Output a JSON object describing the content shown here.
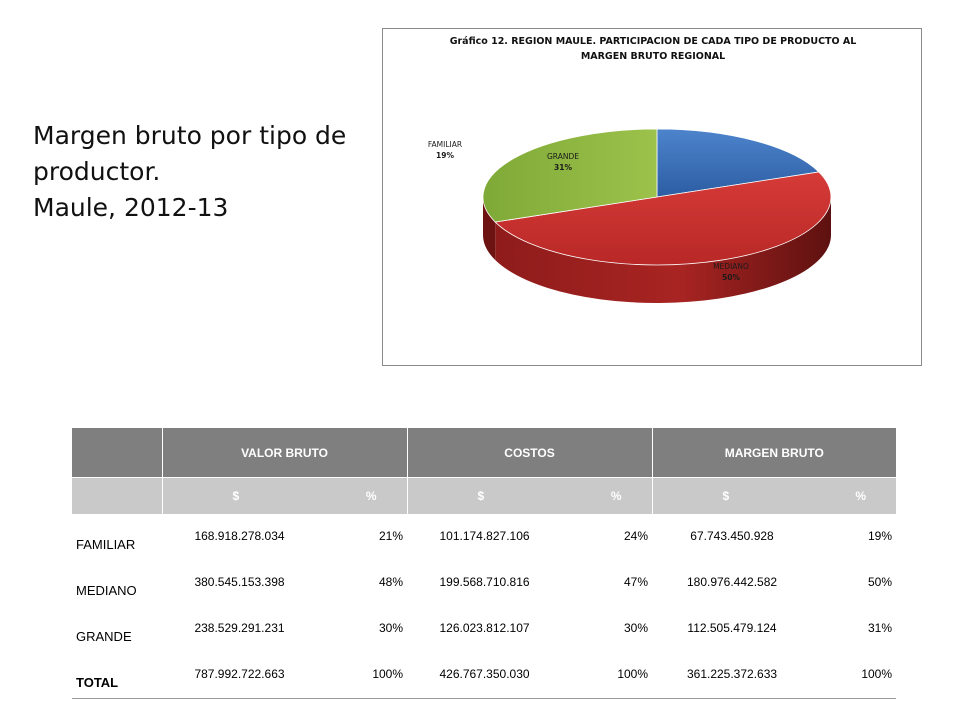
{
  "slide": {
    "title_lines": [
      "Margen bruto por tipo de",
      "productor.",
      "Maule, 2012-13"
    ]
  },
  "chart_data": {
    "type": "pie",
    "title_lines": [
      "Gráfico 12. REGION MAULE. PARTICIPACION  DE CADA TIPO DE PRODUCTO AL",
      "MARGEN BRUTO REGIONAL"
    ],
    "style": "3d",
    "slices": [
      {
        "label": "FAMILIAR",
        "value": 19,
        "display": "19%",
        "color": "#3a6fb8"
      },
      {
        "label": "MEDIANO",
        "value": 50,
        "display": "50%",
        "color": "#c8312f"
      },
      {
        "label": "GRANDE",
        "value": 31,
        "display": "31%",
        "color": "#8db53f"
      }
    ]
  },
  "table": {
    "header_groups": [
      "VALOR BRUTO",
      "COSTOS",
      "MARGEN BRUTO"
    ],
    "sub_headers": [
      "$",
      "%"
    ],
    "rows": [
      {
        "label": "FAMILIAR",
        "cells": [
          "168.918.278.034",
          "21%",
          "101.174.827.106",
          "24%",
          "67.743.450.928",
          "19%"
        ]
      },
      {
        "label": "MEDIANO",
        "cells": [
          "380.545.153.398",
          "48%",
          "199.568.710.816",
          "47%",
          "180.976.442.582",
          "50%"
        ]
      },
      {
        "label": "GRANDE",
        "cells": [
          "238.529.291.231",
          "30%",
          "126.023.812.107",
          "30%",
          "112.505.479.124",
          "31%"
        ]
      },
      {
        "label": "TOTAL",
        "cells": [
          "787.992.722.663",
          "100%",
          "426.767.350.030",
          "100%",
          "361.225.372.633",
          "100%"
        ]
      }
    ]
  }
}
